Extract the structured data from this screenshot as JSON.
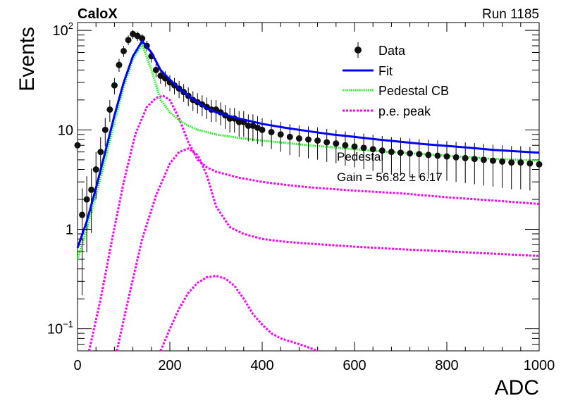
{
  "header": {
    "experiment": "CaloX",
    "run": "Run 1185"
  },
  "annotations": {
    "pedestal": "Pedestal",
    "gain": "Gain = 56.82 ± 6.17"
  },
  "legend": {
    "items": [
      {
        "label": "Data",
        "style": "marker",
        "color": "#000000"
      },
      {
        "label": "Fit",
        "style": "solid",
        "color": "#0000ff"
      },
      {
        "label": "Pedestal CB",
        "style": "dotted",
        "color": "#00ff00"
      },
      {
        "label": "p.e. peak",
        "style": "dashed",
        "color": "#ff00ff"
      }
    ]
  },
  "chart_data": {
    "type": "scatter",
    "xlabel": "ADC",
    "ylabel": "Events",
    "xlim": [
      0,
      1000
    ],
    "ylim": [
      0.06,
      120
    ],
    "yscale": "log",
    "x_ticks": [
      0,
      200,
      400,
      600,
      800,
      1000
    ],
    "y_ticks": [
      {
        "value": 0.1,
        "label": "10^-1"
      },
      {
        "value": 1,
        "label": "1"
      },
      {
        "value": 10,
        "label": "10"
      },
      {
        "value": 100,
        "label": "10^2"
      }
    ],
    "data": {
      "name": "Data",
      "x": [
        0,
        10,
        20,
        30,
        40,
        50,
        60,
        70,
        80,
        90,
        100,
        110,
        120,
        130,
        140,
        150,
        160,
        170,
        180,
        190,
        200,
        210,
        220,
        230,
        240,
        250,
        260,
        270,
        280,
        290,
        300,
        310,
        320,
        330,
        340,
        350,
        360,
        370,
        380,
        390,
        400,
        420,
        440,
        460,
        480,
        500,
        520,
        540,
        560,
        580,
        600,
        620,
        640,
        660,
        680,
        700,
        720,
        740,
        760,
        780,
        800,
        820,
        840,
        860,
        880,
        900,
        920,
        940,
        960,
        980,
        1000
      ],
      "y": [
        7,
        1.4,
        2,
        2.5,
        4,
        6,
        10,
        16,
        28,
        45,
        62,
        80,
        92,
        88,
        83,
        70,
        55,
        40,
        35,
        33,
        30,
        28,
        26,
        24,
        22,
        20,
        19,
        18,
        17,
        16,
        16,
        15,
        14,
        13,
        13,
        12,
        12,
        11,
        11,
        10.5,
        10,
        9.5,
        9,
        8.5,
        8.2,
        8,
        7.8,
        7.5,
        7.3,
        7,
        6.8,
        6.6,
        6.4,
        6.2,
        6,
        5.9,
        5.8,
        5.7,
        5.6,
        5.5,
        5.4,
        5.3,
        5.2,
        5.1,
        5,
        4.9,
        4.8,
        4.7,
        4.7,
        4.6,
        4.5
      ]
    },
    "fit": {
      "name": "Fit",
      "x": [
        0,
        20,
        40,
        60,
        80,
        100,
        120,
        140,
        160,
        180,
        200,
        220,
        240,
        260,
        280,
        300,
        350,
        400,
        450,
        500,
        550,
        600,
        650,
        700,
        750,
        800,
        850,
        900,
        950,
        1000
      ],
      "y": [
        0.65,
        1.2,
        2.6,
        6,
        14,
        30,
        55,
        78,
        60,
        40,
        32,
        26,
        22,
        19,
        16.5,
        15,
        13,
        11.5,
        10.5,
        9.7,
        9,
        8.5,
        8,
        7.6,
        7.2,
        6.9,
        6.6,
        6.3,
        6.1,
        5.9
      ]
    },
    "pedestal_cb": {
      "name": "Pedestal CB",
      "x": [
        0,
        20,
        40,
        60,
        80,
        100,
        120,
        140,
        160,
        180,
        200,
        220,
        240,
        260,
        280,
        300,
        350,
        400,
        450,
        500,
        550,
        600,
        650,
        700,
        750,
        800,
        850,
        900,
        950,
        1000
      ],
      "y": [
        0.5,
        1.0,
        2.2,
        5,
        12,
        27,
        52,
        72,
        40,
        20,
        15,
        12.5,
        11,
        10,
        9.5,
        9,
        8.3,
        7.8,
        7.4,
        7,
        6.7,
        6.4,
        6.1,
        5.9,
        5.7,
        5.5,
        5.3,
        5.1,
        5,
        4.9
      ]
    },
    "pe_peaks": [
      {
        "name": "p.e. peak 1",
        "x": [
          25,
          50,
          75,
          100,
          125,
          150,
          170,
          185,
          200,
          220,
          240,
          260,
          280,
          300,
          350,
          400,
          450,
          500,
          600,
          700,
          800,
          900,
          1000
        ],
        "y": [
          0.06,
          0.2,
          0.8,
          3,
          9,
          17,
          21,
          22,
          20,
          13,
          7.5,
          5,
          4.2,
          3.8,
          3.3,
          3.0,
          2.8,
          2.65,
          2.45,
          2.3,
          2.1,
          1.95,
          1.8
        ]
      },
      {
        "name": "p.e. peak 2",
        "x": [
          85,
          110,
          140,
          170,
          200,
          220,
          240,
          260,
          280,
          300,
          330,
          360,
          400,
          450,
          500,
          600,
          700,
          800,
          900,
          1000
        ],
        "y": [
          0.06,
          0.2,
          0.8,
          2.2,
          4.6,
          6,
          6.5,
          5.6,
          3.5,
          1.7,
          1.05,
          0.9,
          0.8,
          0.75,
          0.72,
          0.67,
          0.63,
          0.6,
          0.57,
          0.54
        ]
      },
      {
        "name": "p.e. peak 3",
        "x": [
          180,
          200,
          220,
          240,
          260,
          280,
          300,
          320,
          340,
          360,
          380,
          400,
          420,
          440,
          460,
          480,
          500,
          520
        ],
        "y": [
          0.06,
          0.1,
          0.16,
          0.23,
          0.29,
          0.33,
          0.34,
          0.32,
          0.27,
          0.2,
          0.14,
          0.11,
          0.09,
          0.08,
          0.075,
          0.07,
          0.065,
          0.06
        ]
      }
    ]
  }
}
